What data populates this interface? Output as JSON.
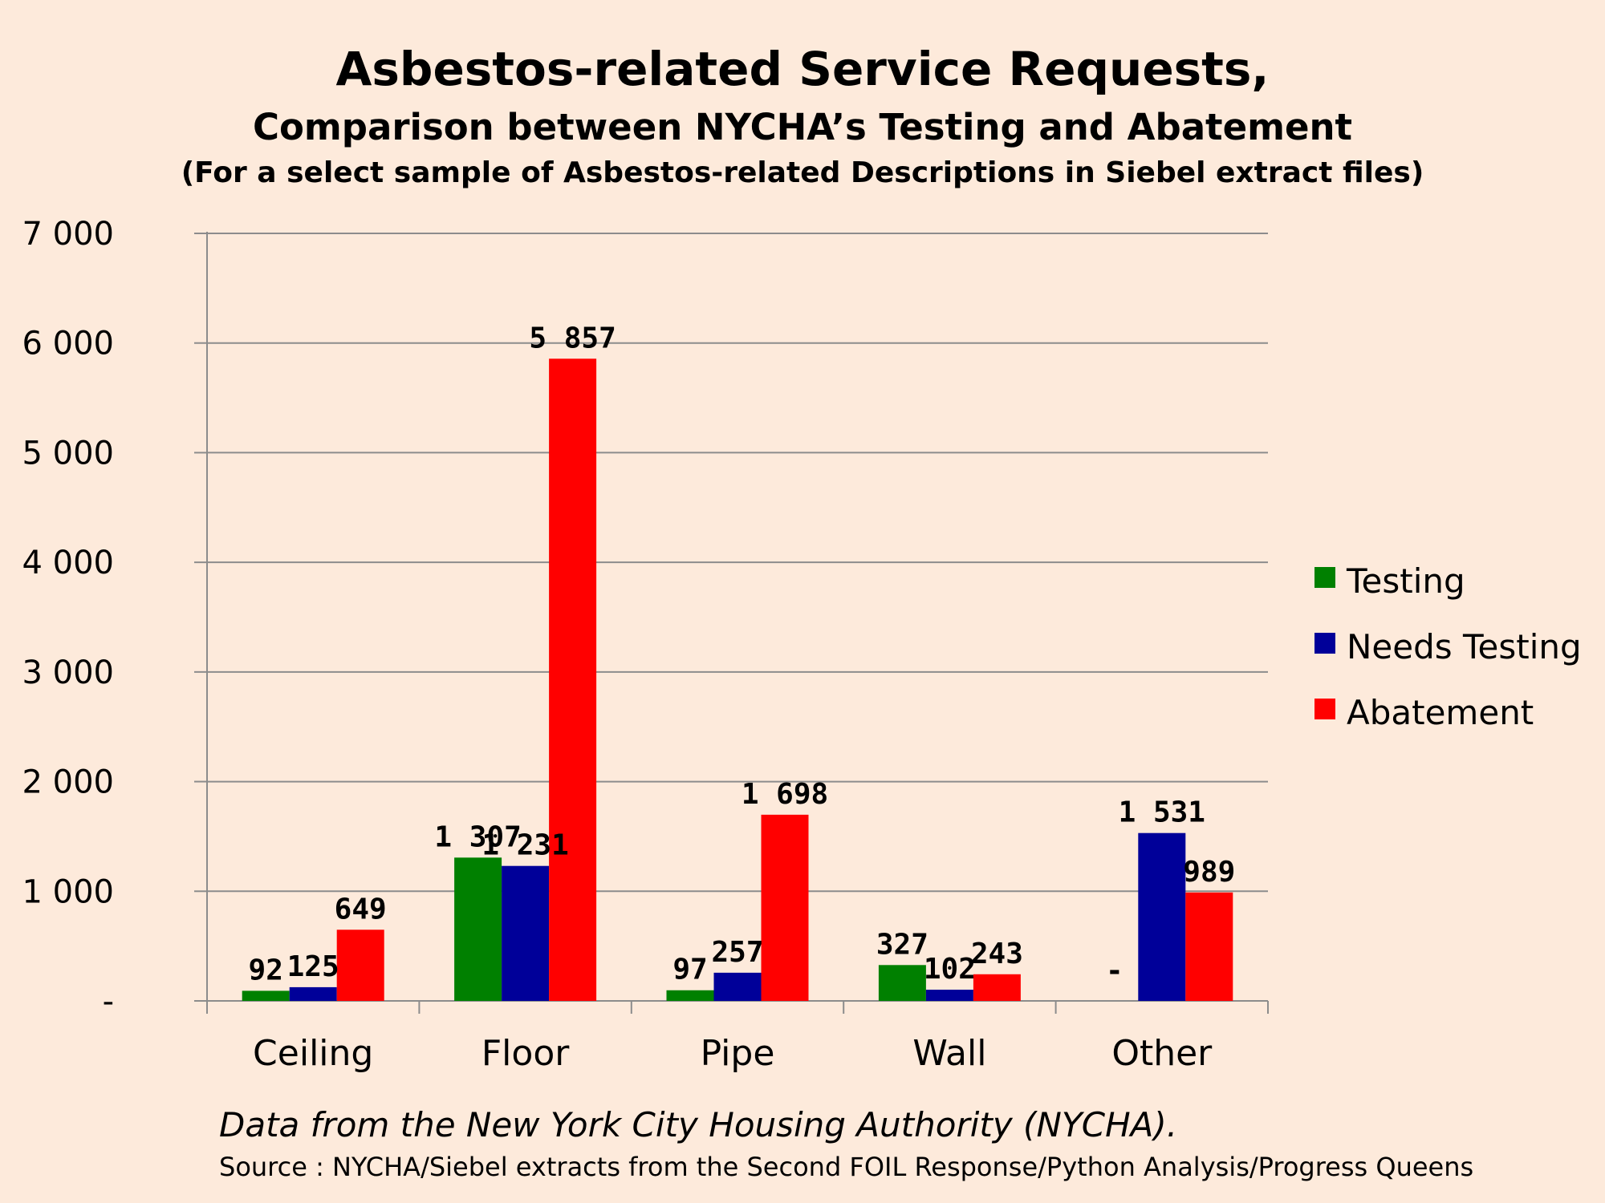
{
  "chart_data": {
    "type": "bar",
    "title": "Asbestos-related Service Requests,",
    "subtitle": "Comparison between NYCHA’s Testing and Abatement",
    "subtitle2": "(For a select sample of Asbestos-related Descriptions in Siebel extract files)",
    "categories": [
      "Ceiling",
      "Floor",
      "Pipe",
      "Wall",
      "Other"
    ],
    "series": [
      {
        "name": "Testing",
        "color": "#008000",
        "values": [
          92,
          1307,
          97,
          327,
          0
        ],
        "labels": [
          "92",
          "1 307",
          "97",
          "327",
          "-"
        ]
      },
      {
        "name": "Needs Testing",
        "color": "#000099",
        "values": [
          125,
          1231,
          257,
          102,
          1531
        ],
        "labels": [
          "125",
          "1 231",
          "257",
          "102",
          "1 531"
        ]
      },
      {
        "name": "Abatement",
        "color": "#ff0000",
        "values": [
          649,
          5857,
          1698,
          243,
          989
        ],
        "labels": [
          "649",
          "5 857",
          "1 698",
          "243",
          "989"
        ]
      }
    ],
    "ylim": [
      0,
      7000
    ],
    "yticks": [
      0,
      1000,
      2000,
      3000,
      4000,
      5000,
      6000,
      7000
    ],
    "ytick_labels": [
      "-",
      "1 000",
      "2 000",
      "3 000",
      "4 000",
      "5 000",
      "6 000",
      "7 000"
    ],
    "grid": true,
    "legend_position": "right"
  },
  "footnote": {
    "main": "Data from the New York City Housing Authority (NYCHA).",
    "source": "Source : NYCHA/Siebel extracts from the Second FOIL Response/Python Analysis/Progress Queens"
  }
}
